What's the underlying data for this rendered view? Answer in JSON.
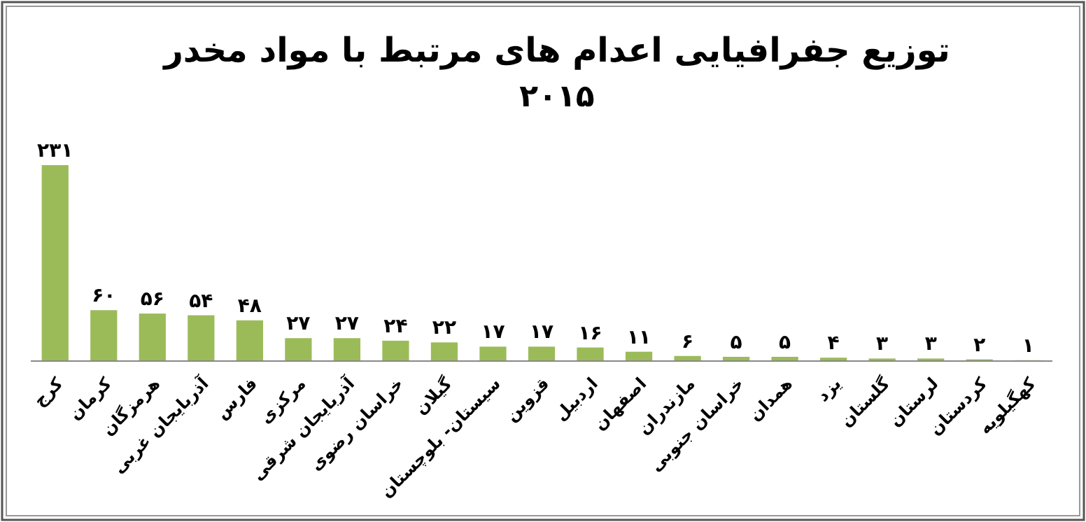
{
  "chart_data": {
    "type": "bar",
    "title": "توزیع جفرافیایی اعدام های مرتبط با مواد مخدر",
    "subtitle": "۲۰۱۵",
    "categories": [
      "کرج",
      "کرمان",
      "هرمزگان",
      "آذربایجان غربی",
      "فارس",
      "مرکزی",
      "آذربایجان شرقی",
      "خراسان رضوی",
      "گیلان",
      "سیستان- بلوچستان",
      "قزوین",
      "اردبیل",
      "اصفهان",
      "مازندران",
      "خراسان جنوبی",
      "همدان",
      "یزد",
      "گلستان",
      "لرستان",
      "کردستان",
      "کهگیلویه"
    ],
    "values": [
      231,
      60,
      56,
      54,
      48,
      27,
      27,
      24,
      22,
      17,
      17,
      16,
      11,
      6,
      5,
      5,
      4,
      3,
      3,
      2,
      1
    ],
    "value_labels": [
      "۲۳۱",
      "۶۰",
      "۵۶",
      "۵۴",
      "۴۸",
      "۲۷",
      "۲۷",
      "۲۴",
      "۲۲",
      "۱۷",
      "۱۷",
      "۱۶",
      "۱۱",
      "۶",
      "۵",
      "۵",
      "۴",
      "۳",
      "۳",
      "۲",
      "۱"
    ],
    "color": "#9bbb59"
  }
}
